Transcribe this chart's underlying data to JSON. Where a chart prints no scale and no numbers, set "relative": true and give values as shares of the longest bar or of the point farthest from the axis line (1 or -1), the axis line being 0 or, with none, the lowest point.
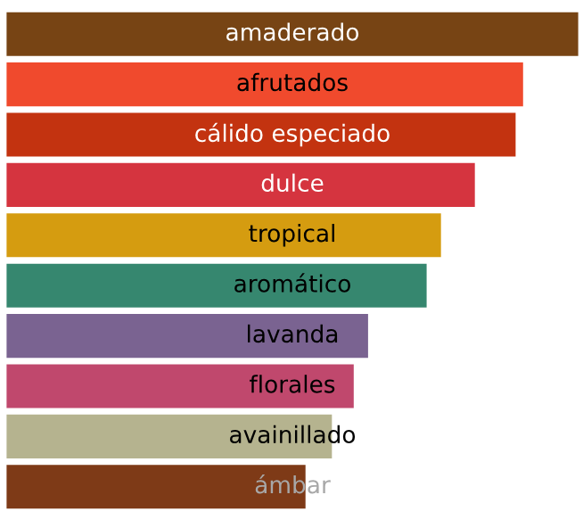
{
  "chart_data": {
    "type": "bar",
    "orientation": "horizontal",
    "relative": true,
    "categories": [
      "amaderado",
      "afrutados",
      "cálido especiado",
      "dulce",
      "tropical",
      "aromático",
      "lavanda",
      "florales",
      "avainillado",
      "ámbar"
    ],
    "values": [
      1,
      0.904,
      0.891,
      0.82,
      0.761,
      0.736,
      0.634,
      0.609,
      0.571,
      0.525
    ],
    "colors": [
      "#774414",
      "#f04a2d",
      "#c33310",
      "#d5343f",
      "#d59c10",
      "#36876f",
      "#7a6391",
      "#c0486d",
      "#b5b38f",
      "#7e3a17"
    ],
    "legend": false
  }
}
